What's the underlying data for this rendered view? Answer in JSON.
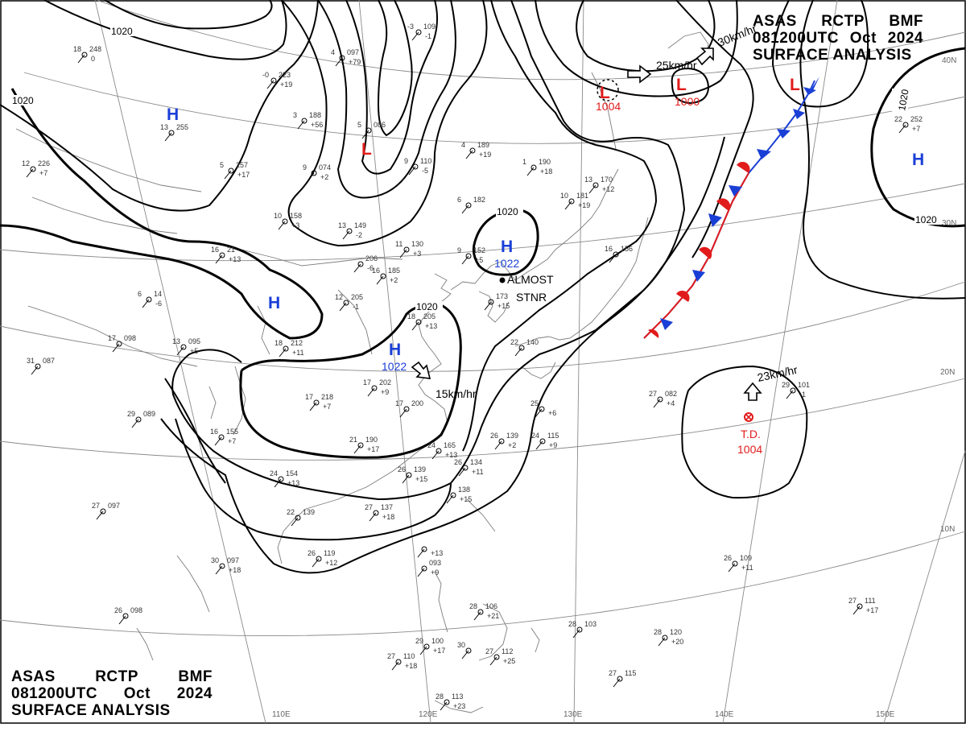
{
  "header": {
    "line1": [
      "ASAS",
      "RCTP",
      "BMF"
    ],
    "line2": [
      "081200UTC",
      "Oct",
      "2024"
    ],
    "line3": "SURFACE ANALYSIS"
  },
  "isobar_value": "1020",
  "pressure_centers": [
    {
      "type": "H",
      "value": ""
    },
    {
      "type": "H",
      "value": ""
    },
    {
      "type": "H",
      "value": "1022"
    },
    {
      "type": "H",
      "value": "1022"
    },
    {
      "type": "H",
      "value": ""
    },
    {
      "type": "L",
      "value": ""
    },
    {
      "type": "L",
      "value": "1004"
    },
    {
      "type": "L",
      "value": "1000"
    },
    {
      "type": "L",
      "value": ""
    }
  ],
  "tropical_depression": {
    "label": "T.D.",
    "value": "1004",
    "motion": "23km/hr"
  },
  "motions": [
    "25km/hr",
    "30km/hr",
    "15km/hr"
  ],
  "almost_stnr": [
    "ALMOST",
    "STNR"
  ],
  "longitude_labels": [
    "110E",
    "120E",
    "130E",
    "140E",
    "150E"
  ],
  "latitude_labels": [
    "40N",
    "30N",
    "20N",
    "10N"
  ],
  "colors": {
    "high": "#1a3fd6",
    "low": "#e11b1b",
    "isobar": "#000000",
    "grid": "#888888",
    "coast": "#777777"
  },
  "stations": [
    {
      "t": "18",
      "p": "248",
      "d": "0"
    },
    {
      "t": "-0",
      "p": "223",
      "d": "+19"
    },
    {
      "t": "4",
      "p": "097",
      "d": "+79"
    },
    {
      "t": "-3",
      "p": "109",
      "d": "-1"
    },
    {
      "t": "3",
      "p": "188",
      "d": "+56"
    },
    {
      "t": "5",
      "p": "086",
      "d": ""
    },
    {
      "t": "13",
      "p": "255",
      "d": ""
    },
    {
      "t": "5",
      "p": "257",
      "d": "+17"
    },
    {
      "t": "9",
      "p": "074",
      "d": "+2"
    },
    {
      "t": "12",
      "p": "226",
      "d": "+7"
    },
    {
      "t": "4",
      "p": "189",
      "d": "+19"
    },
    {
      "t": "9",
      "p": "110",
      "d": "-5"
    },
    {
      "t": "1",
      "p": "190",
      "d": "+18"
    },
    {
      "t": "10",
      "p": "158",
      "d": "+3"
    },
    {
      "t": "13",
      "p": "149",
      "d": "-2"
    },
    {
      "t": "6",
      "p": "182",
      "d": ""
    },
    {
      "t": "10",
      "p": "181",
      "d": "+19"
    },
    {
      "t": "13",
      "p": "170",
      "d": "+12"
    },
    {
      "t": "16",
      "p": "21",
      "d": "+13"
    },
    {
      "t": "11",
      "p": "130",
      "d": "+3"
    },
    {
      "t": "9",
      "p": "152",
      "d": "+5"
    },
    {
      "t": "",
      "p": "206",
      "d": "-6"
    },
    {
      "t": "16",
      "p": "185",
      "d": "+2"
    },
    {
      "t": "6",
      "p": "14",
      "d": "-6"
    },
    {
      "t": "12",
      "p": "205",
      "d": "-1"
    },
    {
      "t": "18",
      "p": "205",
      "d": "+13"
    },
    {
      "t": "",
      "p": "173",
      "d": "+15"
    },
    {
      "t": "16",
      "p": "156",
      "d": ""
    },
    {
      "t": "17",
      "p": "098",
      "d": ""
    },
    {
      "t": "13",
      "p": "095",
      "d": "+5"
    },
    {
      "t": "18",
      "p": "212",
      "d": "+11"
    },
    {
      "t": "31",
      "p": "087",
      "d": ""
    },
    {
      "t": "22",
      "p": "140",
      "d": ""
    },
    {
      "t": "17",
      "p": "218",
      "d": "+7"
    },
    {
      "t": "17",
      "p": "202",
      "d": "+9"
    },
    {
      "t": "17",
      "p": "200",
      "d": ""
    },
    {
      "t": "25",
      "p": "",
      "d": "+6"
    },
    {
      "t": "29",
      "p": "089",
      "d": ""
    },
    {
      "t": "16",
      "p": "155",
      "d": "+7"
    },
    {
      "t": "21",
      "p": "190",
      "d": "+17"
    },
    {
      "t": "24",
      "p": "165",
      "d": "+13"
    },
    {
      "t": "26",
      "p": "139",
      "d": "+2"
    },
    {
      "t": "24",
      "p": "115",
      "d": "+9"
    },
    {
      "t": "27",
      "p": "082",
      "d": "+4"
    },
    {
      "t": "29",
      "p": "101",
      "d": "-1"
    },
    {
      "t": "22",
      "p": "252",
      "d": "+7"
    },
    {
      "t": "26",
      "p": "134",
      "d": "+11"
    },
    {
      "t": "26",
      "p": "139",
      "d": "+15"
    },
    {
      "t": "",
      "p": "138",
      "d": "+15"
    },
    {
      "t": "24",
      "p": "154",
      "d": "+13"
    },
    {
      "t": "27",
      "p": "097",
      "d": ""
    },
    {
      "t": "22",
      "p": "139",
      "d": ""
    },
    {
      "t": "27",
      "p": "137",
      "d": "+18"
    },
    {
      "t": "26",
      "p": "119",
      "d": "+12"
    },
    {
      "t": "30",
      "p": "097",
      "d": "+18"
    },
    {
      "t": "",
      "p": "",
      "d": "+13"
    },
    {
      "t": "",
      "p": "093",
      "d": "+9"
    },
    {
      "t": "26",
      "p": "109",
      "d": "+11"
    },
    {
      "t": "26",
      "p": "098",
      "d": ""
    },
    {
      "t": "28",
      "p": "106",
      "d": "+21"
    },
    {
      "t": "28",
      "p": "103",
      "d": ""
    },
    {
      "t": "28",
      "p": "120",
      "d": "+20"
    },
    {
      "t": "27",
      "p": "111",
      "d": "+17"
    },
    {
      "t": "29",
      "p": "100",
      "d": "+17"
    },
    {
      "t": "30",
      "p": "",
      "d": ""
    },
    {
      "t": "27",
      "p": "112",
      "d": "+25"
    },
    {
      "t": "27",
      "p": "110",
      "d": "+18"
    },
    {
      "t": "27",
      "p": "115",
      "d": ""
    },
    {
      "t": "28",
      "p": "113",
      "d": "+23"
    }
  ]
}
